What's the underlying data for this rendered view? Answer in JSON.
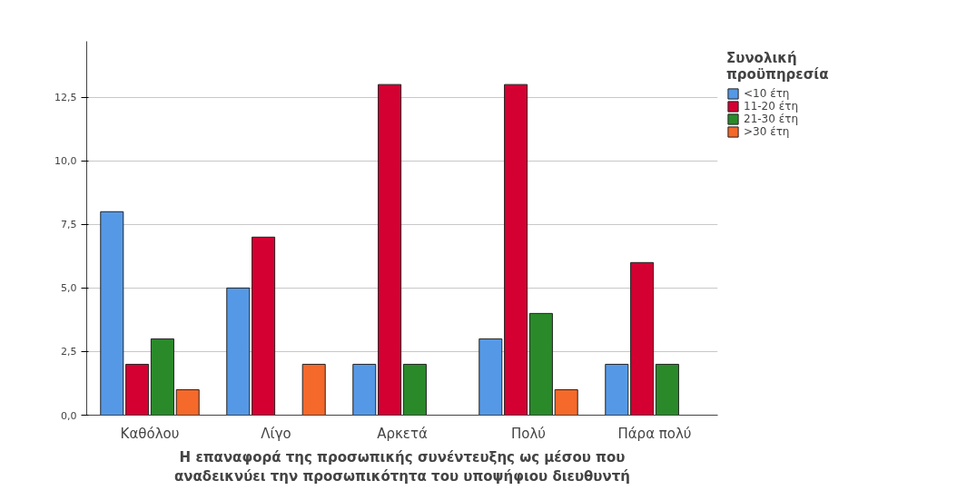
{
  "chart_data": {
    "type": "bar",
    "xlabel": "Η επαναφορά της προσωπικής συνέντευξης ως μέσου που\nαναδεικνύει την προσωπικότητα του υποψήφιου διευθυντή",
    "legend_title": "Συνολική\nπροϋπηρεσία",
    "categories": [
      "Καθόλου",
      "Λίγο",
      "Αρκετά",
      "Πολύ",
      "Πάρα πολύ"
    ],
    "series": [
      {
        "name": "<10 έτη",
        "color": "#5599e6",
        "values": [
          8,
          5,
          2,
          3,
          2
        ]
      },
      {
        "name": "11-20 έτη",
        "color": "#d50032",
        "values": [
          2,
          7,
          13,
          13,
          6
        ]
      },
      {
        "name": "21-30 έτη",
        "color": "#2a8a2a",
        "values": [
          3,
          null,
          2,
          4,
          2
        ]
      },
      {
        "name": ">30 έτη",
        "color": "#f5692a",
        "values": [
          1,
          2,
          null,
          1,
          null
        ]
      }
    ],
    "ylim": [
      0,
      14.7
    ],
    "yticks": [
      {
        "value": 0,
        "label": "0,0"
      },
      {
        "value": 2.5,
        "label": "2,5"
      },
      {
        "value": 5,
        "label": "5,0"
      },
      {
        "value": 7.5,
        "label": "7,5"
      },
      {
        "value": 10,
        "label": "10,0"
      },
      {
        "value": 12.5,
        "label": "12,5"
      }
    ],
    "grid": "y",
    "legend": "top right"
  }
}
